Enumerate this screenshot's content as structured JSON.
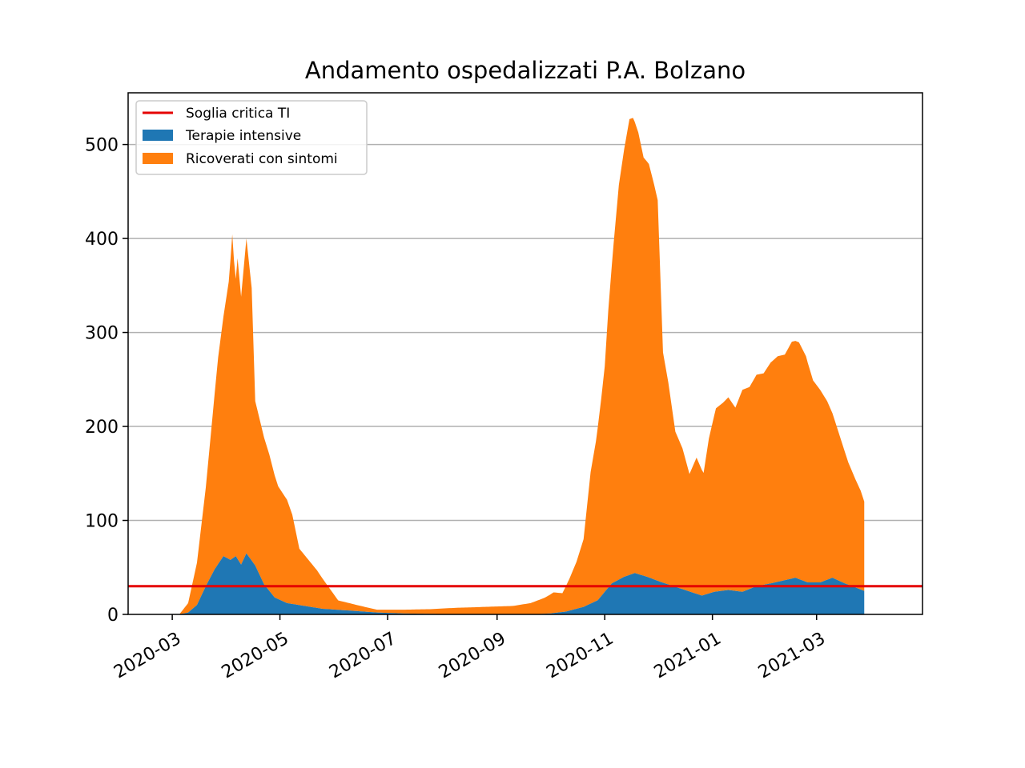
{
  "chart_data": {
    "type": "area",
    "title": "Andamento ospedalizzati P.A. Bolzano",
    "xlabel": "",
    "ylabel": "",
    "x_ticks": [
      "2020-03",
      "2020-05",
      "2020-07",
      "2020-09",
      "2020-11",
      "2021-01",
      "2021-03"
    ],
    "y_ticks": [
      0,
      100,
      200,
      300,
      400,
      500
    ],
    "xlim": [
      "2020-02-05",
      "2021-04-30"
    ],
    "ylim": [
      0,
      555
    ],
    "grid": "y",
    "legend_position": "top-left",
    "threshold": {
      "name": "Soglia critica TI",
      "value": 30,
      "color": "#e50000"
    },
    "series": [
      {
        "name": "Terapie intensive",
        "color": "#1f77b4",
        "points": [
          [
            "2020-03-05",
            0
          ],
          [
            "2020-03-10",
            2
          ],
          [
            "2020-03-15",
            10
          ],
          [
            "2020-03-20",
            30
          ],
          [
            "2020-03-25",
            48
          ],
          [
            "2020-03-30",
            62
          ],
          [
            "2020-04-03",
            58
          ],
          [
            "2020-04-06",
            62
          ],
          [
            "2020-04-09",
            53
          ],
          [
            "2020-04-12",
            65
          ],
          [
            "2020-04-17",
            52
          ],
          [
            "2020-04-22",
            32
          ],
          [
            "2020-04-28",
            18
          ],
          [
            "2020-05-05",
            12
          ],
          [
            "2020-05-15",
            9
          ],
          [
            "2020-05-25",
            6
          ],
          [
            "2020-06-10",
            4
          ],
          [
            "2020-06-25",
            2
          ],
          [
            "2020-07-10",
            1
          ],
          [
            "2020-08-15",
            0
          ],
          [
            "2020-09-20",
            0
          ],
          [
            "2020-10-01",
            1
          ],
          [
            "2020-10-10",
            3
          ],
          [
            "2020-10-20",
            8
          ],
          [
            "2020-10-28",
            15
          ],
          [
            "2020-11-05",
            33
          ],
          [
            "2020-11-12",
            40
          ],
          [
            "2020-11-18",
            44
          ],
          [
            "2020-11-25",
            40
          ],
          [
            "2020-12-02",
            35
          ],
          [
            "2020-12-10",
            30
          ],
          [
            "2020-12-18",
            25
          ],
          [
            "2020-12-26",
            20
          ],
          [
            "2021-01-02",
            24
          ],
          [
            "2021-01-10",
            26
          ],
          [
            "2021-01-18",
            24
          ],
          [
            "2021-01-26",
            30
          ],
          [
            "2021-02-03",
            33
          ],
          [
            "2021-02-10",
            36
          ],
          [
            "2021-02-17",
            39
          ],
          [
            "2021-02-24",
            34
          ],
          [
            "2021-03-03",
            34
          ],
          [
            "2021-03-10",
            39
          ],
          [
            "2021-03-17",
            33
          ],
          [
            "2021-03-24",
            28
          ],
          [
            "2021-03-28",
            25
          ]
        ]
      },
      {
        "name": "Ricoverati con sintomi",
        "color": "#ff7f0e",
        "points": [
          [
            "2020-03-05",
            0
          ],
          [
            "2020-03-10",
            10
          ],
          [
            "2020-03-15",
            45
          ],
          [
            "2020-03-20",
            105
          ],
          [
            "2020-03-24",
            170
          ],
          [
            "2020-03-27",
            220
          ],
          [
            "2020-03-30",
            255
          ],
          [
            "2020-04-02",
            295
          ],
          [
            "2020-04-04",
            345
          ],
          [
            "2020-04-05",
            315
          ],
          [
            "2020-04-06",
            295
          ],
          [
            "2020-04-07",
            320
          ],
          [
            "2020-04-09",
            285
          ],
          [
            "2020-04-12",
            335
          ],
          [
            "2020-04-15",
            290
          ],
          [
            "2020-04-17",
            175
          ],
          [
            "2020-04-21",
            160
          ],
          [
            "2020-04-25",
            145
          ],
          [
            "2020-04-30",
            120
          ],
          [
            "2020-05-05",
            110
          ],
          [
            "2020-05-08",
            95
          ],
          [
            "2020-05-12",
            60
          ],
          [
            "2020-05-16",
            52
          ],
          [
            "2020-05-22",
            40
          ],
          [
            "2020-05-28",
            25
          ],
          [
            "2020-06-03",
            10
          ],
          [
            "2020-06-15",
            6
          ],
          [
            "2020-06-25",
            3
          ],
          [
            "2020-07-10",
            4
          ],
          [
            "2020-07-25",
            5
          ],
          [
            "2020-08-10",
            7
          ],
          [
            "2020-08-25",
            8
          ],
          [
            "2020-09-10",
            9
          ],
          [
            "2020-09-20",
            12
          ],
          [
            "2020-09-28",
            17
          ],
          [
            "2020-10-03",
            22
          ],
          [
            "2020-10-08",
            20
          ],
          [
            "2020-10-12",
            34
          ],
          [
            "2020-10-16",
            50
          ],
          [
            "2020-10-20",
            72
          ],
          [
            "2020-10-24",
            140
          ],
          [
            "2020-10-27",
            170
          ],
          [
            "2020-10-30",
            210
          ],
          [
            "2020-11-01",
            240
          ],
          [
            "2020-11-03",
            295
          ],
          [
            "2020-11-06",
            360
          ],
          [
            "2020-11-09",
            420
          ],
          [
            "2020-11-12",
            455
          ],
          [
            "2020-11-15",
            485
          ],
          [
            "2020-11-17",
            485
          ],
          [
            "2020-11-20",
            470
          ],
          [
            "2020-11-23",
            445
          ],
          [
            "2020-11-26",
            440
          ],
          [
            "2020-11-29",
            420
          ],
          [
            "2020-12-01",
            405
          ],
          [
            "2020-12-04",
            245
          ],
          [
            "2020-12-07",
            215
          ],
          [
            "2020-12-11",
            165
          ],
          [
            "2020-12-15",
            150
          ],
          [
            "2020-12-19",
            125
          ],
          [
            "2020-12-23",
            145
          ],
          [
            "2020-12-27",
            130
          ],
          [
            "2020-12-30",
            165
          ],
          [
            "2021-01-03",
            195
          ],
          [
            "2021-01-07",
            200
          ],
          [
            "2021-01-10",
            205
          ],
          [
            "2021-01-14",
            195
          ],
          [
            "2021-01-18",
            215
          ],
          [
            "2021-01-22",
            215
          ],
          [
            "2021-01-26",
            225
          ],
          [
            "2021-01-30",
            225
          ],
          [
            "2021-02-03",
            235
          ],
          [
            "2021-02-07",
            240
          ],
          [
            "2021-02-11",
            240
          ],
          [
            "2021-02-15",
            252
          ],
          [
            "2021-02-19",
            252
          ],
          [
            "2021-02-23",
            240
          ],
          [
            "2021-02-27",
            215
          ],
          [
            "2021-03-03",
            205
          ],
          [
            "2021-03-07",
            190
          ],
          [
            "2021-03-11",
            170
          ],
          [
            "2021-03-15",
            150
          ],
          [
            "2021-03-19",
            130
          ],
          [
            "2021-03-23",
            115
          ],
          [
            "2021-03-26",
            105
          ],
          [
            "2021-03-28",
            95
          ]
        ]
      }
    ]
  }
}
